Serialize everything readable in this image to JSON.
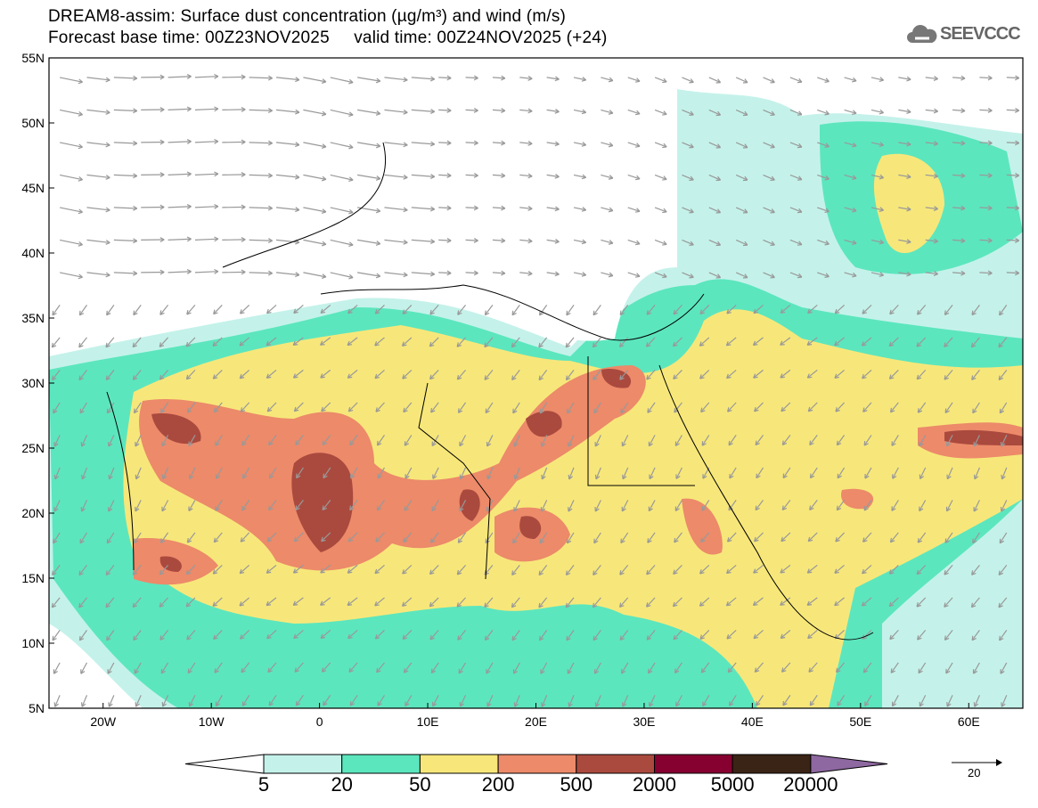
{
  "header": {
    "title": "DREAM8-assim: Surface dust concentration (µg/m³) and wind (m/s)",
    "subtitle": "Forecast base time: 00Z23NOV2025     valid time: 00Z24NOV2025 (+24)"
  },
  "logo": {
    "text": "SEEVCCC",
    "icon": "cloud-icon"
  },
  "map": {
    "lon_range": [
      -25,
      65
    ],
    "lat_range": [
      5,
      55
    ],
    "lat_labels": [
      "55N",
      "50N",
      "45N",
      "40N",
      "35N",
      "30N",
      "25N",
      "20N",
      "15N",
      "10N",
      "5N"
    ],
    "lon_labels": [
      "20W",
      "10W",
      "0",
      "10E",
      "20E",
      "30E",
      "40E",
      "50E",
      "60E"
    ]
  },
  "colorbar": {
    "labels": [
      "5",
      "20",
      "50",
      "200",
      "500",
      "2000",
      "5000",
      "20000"
    ],
    "colors": [
      "#c4f2ea",
      "#5ce6be",
      "#f7e77a",
      "#ec8a6a",
      "#aa4a3e",
      "#860030",
      "#3a2416",
      "#8e68a0"
    ]
  },
  "wind_reference": {
    "value": "20"
  }
}
